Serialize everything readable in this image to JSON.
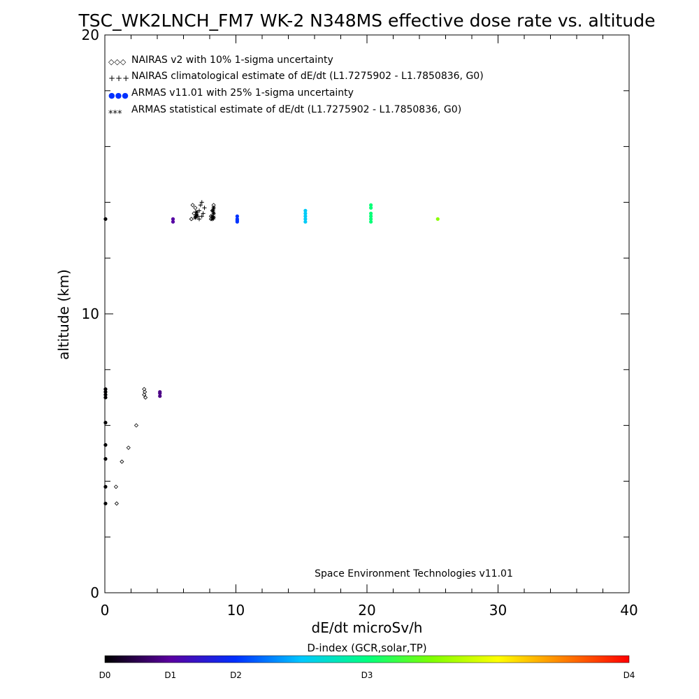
{
  "chart_data": {
    "type": "scatter",
    "title": "TSC_WK2LNCH_FM7 WK-2 N348MS effective dose rate vs. altitude",
    "xlabel": "dE/dt microSv/h",
    "ylabel": "altitude (km)",
    "xlim": [
      0,
      40
    ],
    "ylim": [
      0,
      20
    ],
    "x_ticks": [
      "0",
      "10",
      "20",
      "30",
      "40"
    ],
    "y_ticks": [
      "0",
      "10",
      "20"
    ],
    "grid": false,
    "legend_position": "top-left",
    "legend": [
      {
        "symbol": "◇◇◇",
        "text": "NAIRAS v2 with 10% 1-sigma uncertainty"
      },
      {
        "symbol": "+++",
        "text": "NAIRAS climatological estimate of dE/dt (L1.7275902 - L1.7850836, G0)"
      },
      {
        "symbol": "●●●",
        "text": "ARMAS v11.01 with 25% 1-sigma uncertainty"
      },
      {
        "symbol": "***",
        "text": "ARMAS statistical estimate of dE/dt (L1.7275902 - L1.7850836, G0)"
      }
    ],
    "annotation": "Space Environment Technologies v11.01",
    "colorbar": {
      "title": "D-index (GCR,solar,TP)",
      "labels": [
        {
          "text": "D0",
          "value": 0
        },
        {
          "text": "D1",
          "value": 5
        },
        {
          "text": "D2",
          "value": 10
        },
        {
          "text": "D3",
          "value": 20
        },
        {
          "text": "D4",
          "value": 40
        }
      ],
      "colors": [
        "#000000",
        "#5a00a0",
        "#0030ff",
        "#00c8ff",
        "#00ff80",
        "#80ff00",
        "#ffff00",
        "#ff8000",
        "#ff0000"
      ]
    },
    "series": [
      {
        "name": "NAIRAS v2 with 10% 1-sigma uncertainty",
        "marker": "diamond",
        "color": "#000000",
        "points": [
          [
            0.9,
            3.2
          ],
          [
            0.85,
            3.8
          ],
          [
            1.3,
            4.7
          ],
          [
            1.8,
            5.2
          ],
          [
            2.4,
            6.0
          ],
          [
            3.0,
            7.1
          ],
          [
            3.05,
            7.2
          ],
          [
            3.0,
            7.3
          ],
          [
            3.1,
            7.0
          ],
          [
            6.6,
            13.4
          ],
          [
            6.8,
            13.6
          ],
          [
            6.9,
            13.8
          ],
          [
            6.7,
            13.9
          ],
          [
            8.1,
            13.4
          ],
          [
            8.2,
            13.7
          ],
          [
            8.3,
            13.9
          ],
          [
            8.1,
            13.5
          ]
        ]
      },
      {
        "name": "NAIRAS climatological estimate of dE/dt (L1.7275902 - L1.7850836, G0)",
        "marker": "plus",
        "color": "#000000",
        "points": [
          [
            7.1,
            13.5
          ],
          [
            7.2,
            13.7
          ],
          [
            7.3,
            13.9
          ],
          [
            7.4,
            14.0
          ],
          [
            7.5,
            13.6
          ],
          [
            7.6,
            13.8
          ],
          [
            7.2,
            13.4
          ],
          [
            7.4,
            13.5
          ]
        ]
      },
      {
        "name": "ARMAS v11.01 with 25% 1-sigma uncertainty",
        "marker": "dot",
        "color": "colorbar",
        "points": [
          [
            0.05,
            3.2
          ],
          [
            0.05,
            3.8
          ],
          [
            0.05,
            4.8
          ],
          [
            0.05,
            5.3
          ],
          [
            0.05,
            6.1
          ],
          [
            0.05,
            7.0
          ],
          [
            0.05,
            7.1
          ],
          [
            0.05,
            7.2
          ],
          [
            0.05,
            7.3
          ],
          [
            0.05,
            13.4
          ],
          [
            4.2,
            7.05
          ],
          [
            4.2,
            7.15
          ],
          [
            4.2,
            7.2
          ],
          [
            5.2,
            13.3
          ],
          [
            5.2,
            13.4
          ],
          [
            10.1,
            13.3
          ],
          [
            10.1,
            13.4
          ],
          [
            10.1,
            13.5
          ],
          [
            10.1,
            13.35
          ],
          [
            15.3,
            13.3
          ],
          [
            15.3,
            13.4
          ],
          [
            15.3,
            13.5
          ],
          [
            15.3,
            13.6
          ],
          [
            15.3,
            13.7
          ],
          [
            20.3,
            13.3
          ],
          [
            20.3,
            13.4
          ],
          [
            20.3,
            13.5
          ],
          [
            20.3,
            13.6
          ],
          [
            20.3,
            13.8
          ],
          [
            20.3,
            13.9
          ],
          [
            25.4,
            13.4
          ]
        ]
      },
      {
        "name": "ARMAS statistical estimate of dE/dt (L1.7275902 - L1.7850836, G0)",
        "marker": "asterisk",
        "color": "#000000",
        "points": [
          [
            6.9,
            13.45
          ],
          [
            7.0,
            13.55
          ],
          [
            7.0,
            13.65
          ],
          [
            6.95,
            13.5
          ],
          [
            8.2,
            13.5
          ],
          [
            8.3,
            13.6
          ],
          [
            8.25,
            13.7
          ],
          [
            8.3,
            13.8
          ],
          [
            8.2,
            13.4
          ],
          [
            8.3,
            13.45
          ]
        ]
      }
    ]
  }
}
